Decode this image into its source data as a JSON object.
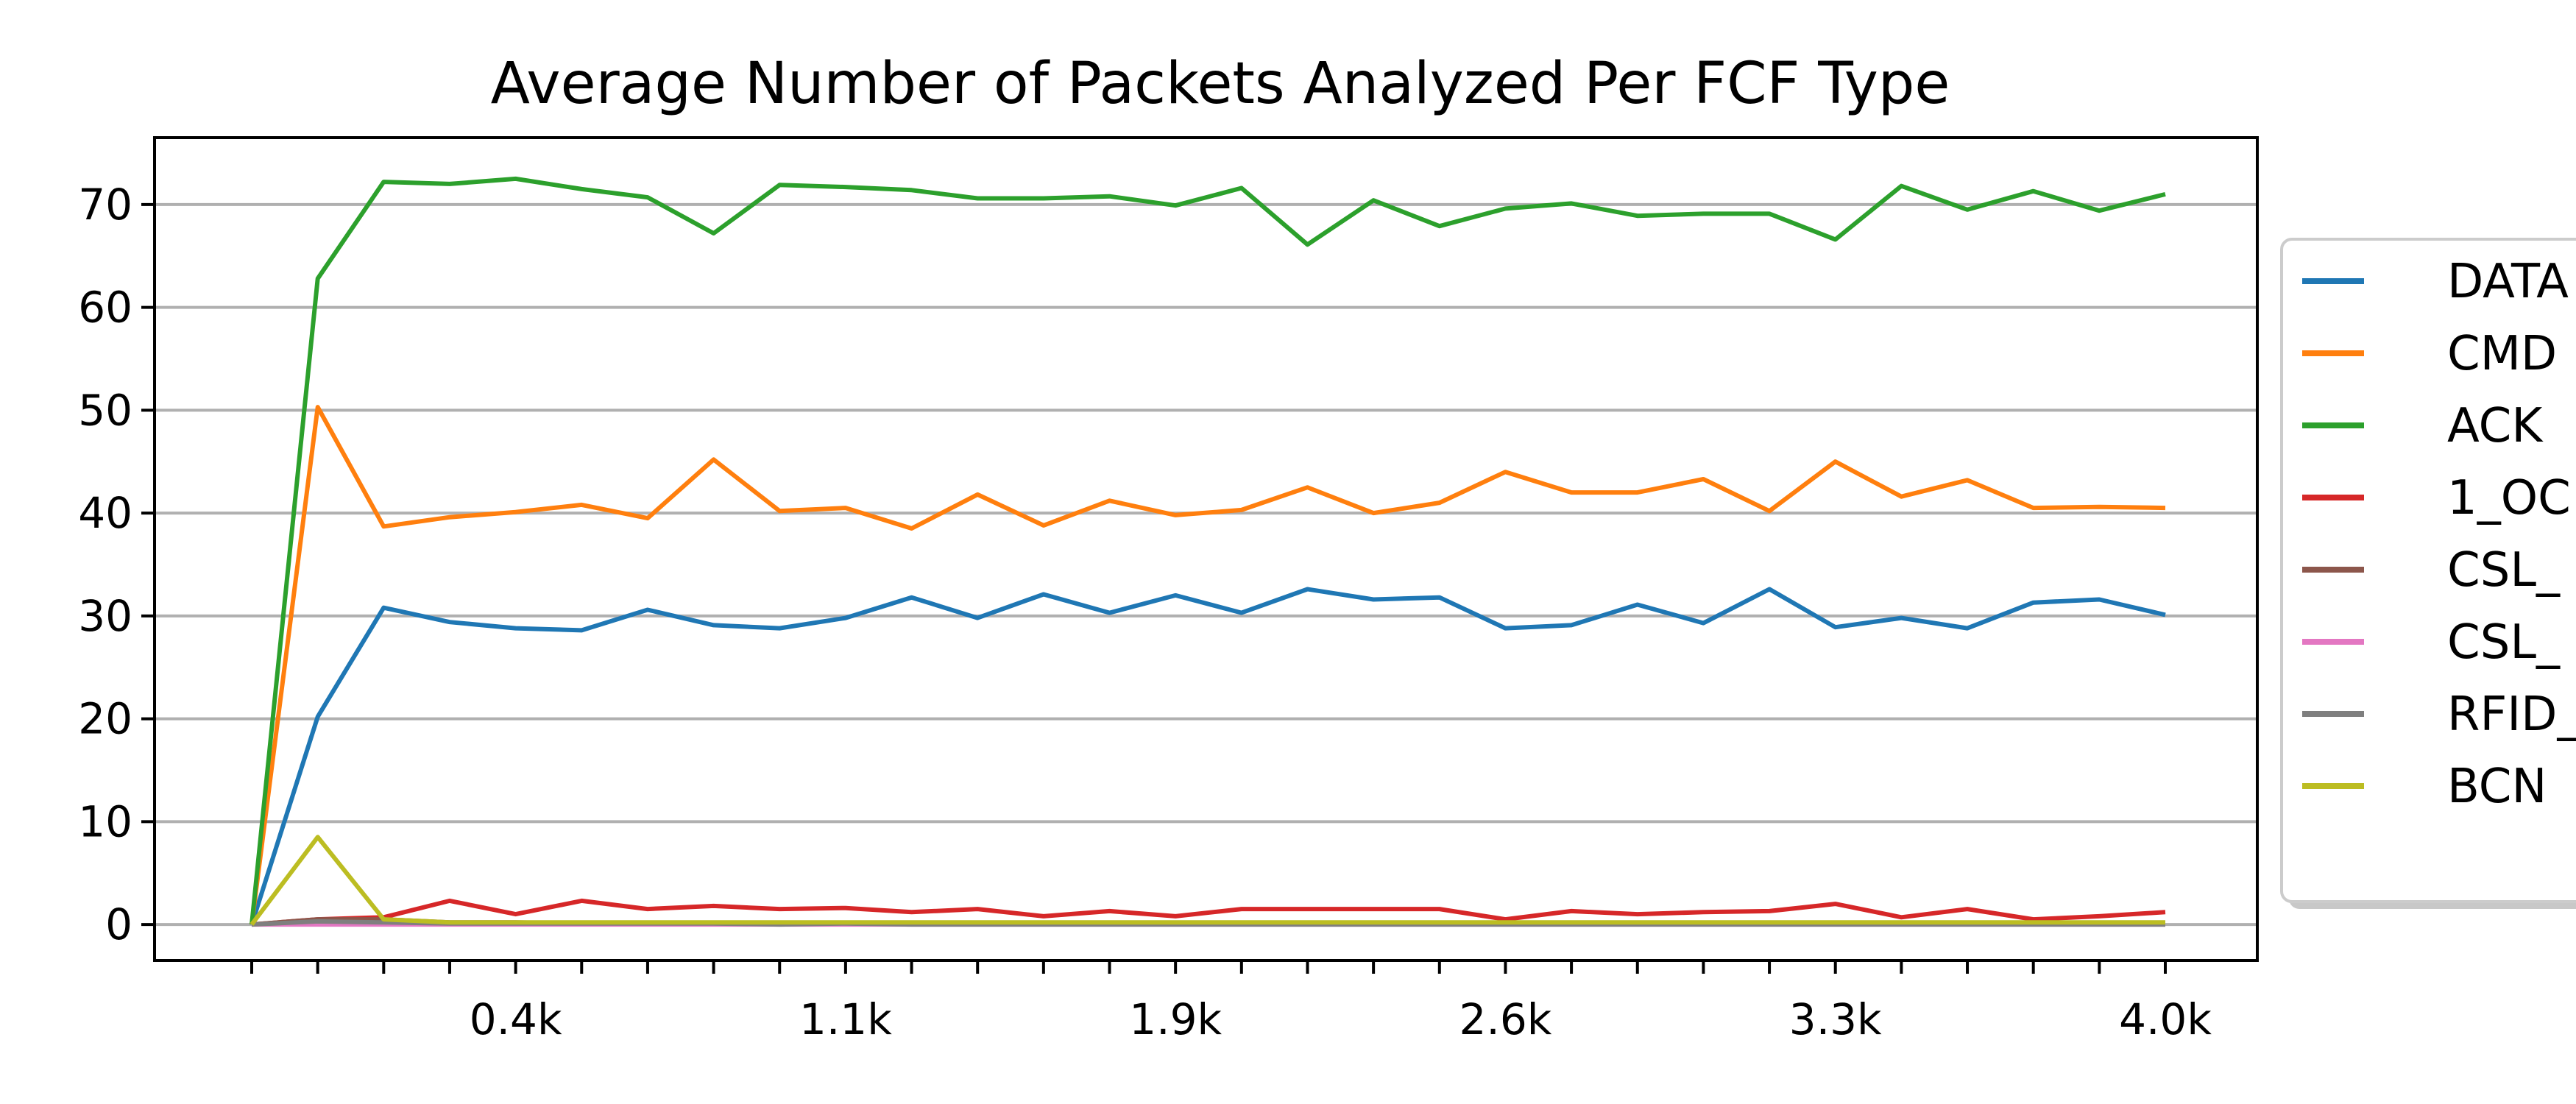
{
  "chart_data": {
    "type": "line",
    "title": "Average Number of Packets Analyzed Per FCF Type",
    "xlabel": "",
    "ylabel": "",
    "x_tick_labels": [
      "0.4k",
      "1.1k",
      "1.9k",
      "2.6k",
      "3.3k",
      "4.0k"
    ],
    "y_ticks": [
      0,
      10,
      20,
      30,
      40,
      50,
      60,
      70
    ],
    "ylim": [
      -3.5,
      76.5
    ],
    "grid": "horizontal",
    "legend_position": "right (clipped)",
    "series": [
      {
        "name": "DATA",
        "color": "#1f77b4",
        "values": [
          0,
          20.2,
          30.8,
          29.4,
          28.8,
          28.6,
          30.6,
          29.1,
          28.8,
          29.8,
          31.8,
          29.8,
          32.1,
          30.3,
          32.0,
          30.3,
          32.6,
          31.6,
          31.8,
          28.8,
          29.1,
          31.1,
          29.3,
          32.6,
          28.9,
          29.8,
          28.8,
          31.3,
          31.6,
          30.1
        ]
      },
      {
        "name": "CMD",
        "color": "#ff7f0e",
        "values": [
          0,
          50.3,
          38.7,
          39.6,
          40.1,
          40.8,
          39.5,
          45.2,
          40.2,
          40.5,
          38.5,
          41.8,
          38.8,
          41.2,
          39.8,
          40.3,
          42.5,
          40.0,
          41.0,
          44.0,
          42.0,
          42.0,
          43.3,
          40.2,
          45.0,
          41.6,
          43.2,
          40.5,
          40.6,
          40.5
        ]
      },
      {
        "name": "ACK",
        "color": "#2ca02c",
        "values": [
          0,
          62.8,
          72.2,
          72.0,
          72.5,
          71.5,
          70.7,
          67.2,
          71.9,
          71.7,
          71.4,
          70.6,
          70.6,
          70.8,
          69.9,
          71.6,
          66.1,
          70.4,
          67.9,
          69.6,
          70.1,
          68.9,
          69.1,
          69.1,
          66.6,
          71.8,
          69.5,
          71.3,
          69.4,
          71.0
        ]
      },
      {
        "name": "1_OC",
        "color": "#d62728",
        "values": [
          0,
          0.5,
          0.7,
          2.3,
          1.0,
          2.3,
          1.5,
          1.8,
          1.5,
          1.6,
          1.2,
          1.5,
          0.8,
          1.3,
          0.8,
          1.5,
          1.5,
          1.5,
          1.5,
          0.5,
          1.3,
          1.0,
          1.2,
          1.3,
          2.0,
          0.7,
          1.5,
          0.5,
          0.8,
          1.2
        ]
      },
      {
        "name": "CSL_",
        "color": "#8c564b",
        "values": [
          0,
          0.5,
          0.5,
          0.2,
          0.2,
          0.1,
          0.1,
          0.1,
          0.1,
          0.1,
          0.1,
          0.1,
          0.1,
          0.1,
          0.1,
          0.1,
          0.1,
          0.1,
          0.1,
          0.1,
          0.1,
          0.1,
          0.1,
          0.1,
          0.1,
          0.1,
          0.1,
          0.1,
          0.1,
          0.1
        ]
      },
      {
        "name": "CSL_",
        "color": "#e377c2",
        "values": [
          0,
          0.0,
          0.0,
          0.0,
          0.0,
          0.0,
          0.0,
          0.0,
          0.0,
          0.0,
          0.0,
          0.0,
          0.0,
          0.0,
          0.0,
          0.0,
          0.0,
          0.0,
          0.0,
          0.0,
          0.0,
          0.0,
          0.0,
          0.0,
          0.0,
          0.0,
          0.0,
          0.0,
          0.0,
          0.0
        ]
      },
      {
        "name": "RFID_",
        "color": "#7f7f7f",
        "values": [
          0,
          0.3,
          0.2,
          0.1,
          0.1,
          0.1,
          0.1,
          0.1,
          0.0,
          0.1,
          0.0,
          0.0,
          0.0,
          0.0,
          0.0,
          0.0,
          0.0,
          0.0,
          0.0,
          0.0,
          0.0,
          0.0,
          0.0,
          0.0,
          0.0,
          0.0,
          0.0,
          0.0,
          0.0,
          0.0
        ]
      },
      {
        "name": "BCN",
        "color": "#bcbd22",
        "values": [
          0,
          8.5,
          0.5,
          0.2,
          0.2,
          0.2,
          0.2,
          0.2,
          0.2,
          0.2,
          0.2,
          0.2,
          0.2,
          0.2,
          0.2,
          0.2,
          0.2,
          0.2,
          0.2,
          0.2,
          0.2,
          0.2,
          0.2,
          0.2,
          0.2,
          0.2,
          0.2,
          0.2,
          0.2,
          0.2
        ]
      }
    ]
  }
}
